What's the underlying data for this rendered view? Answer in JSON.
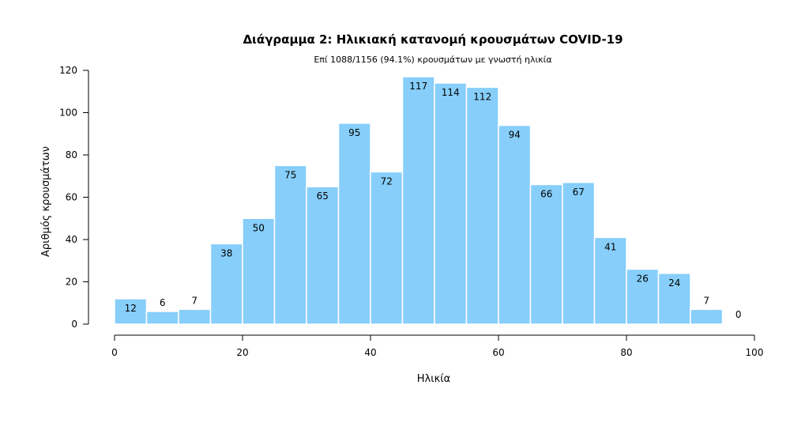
{
  "chart_data": {
    "type": "bar",
    "title": "Διάγραμμα 2: Ηλικιακή κατανομή κρουσμάτων COVID-19",
    "subtitle": "Επί 1088/1156 (94.1%) κρουσμάτων με γνωστή ηλικία",
    "xlabel": "Ηλικία",
    "ylabel": "Αριθμός κρουσμάτων",
    "bin_edges": [
      0,
      5,
      10,
      15,
      20,
      25,
      30,
      35,
      40,
      45,
      50,
      55,
      60,
      65,
      70,
      75,
      80,
      85,
      90,
      95,
      100
    ],
    "values": [
      12,
      6,
      7,
      38,
      50,
      75,
      65,
      95,
      72,
      117,
      114,
      112,
      94,
      66,
      67,
      41,
      26,
      24,
      7,
      0
    ],
    "xlim": [
      0,
      100
    ],
    "ylim": [
      0,
      120
    ],
    "xticks": [
      0,
      20,
      40,
      60,
      80,
      100
    ],
    "yticks": [
      0,
      20,
      40,
      60,
      80,
      100,
      120
    ],
    "bar_color": "#87cefa",
    "grid": false
  }
}
